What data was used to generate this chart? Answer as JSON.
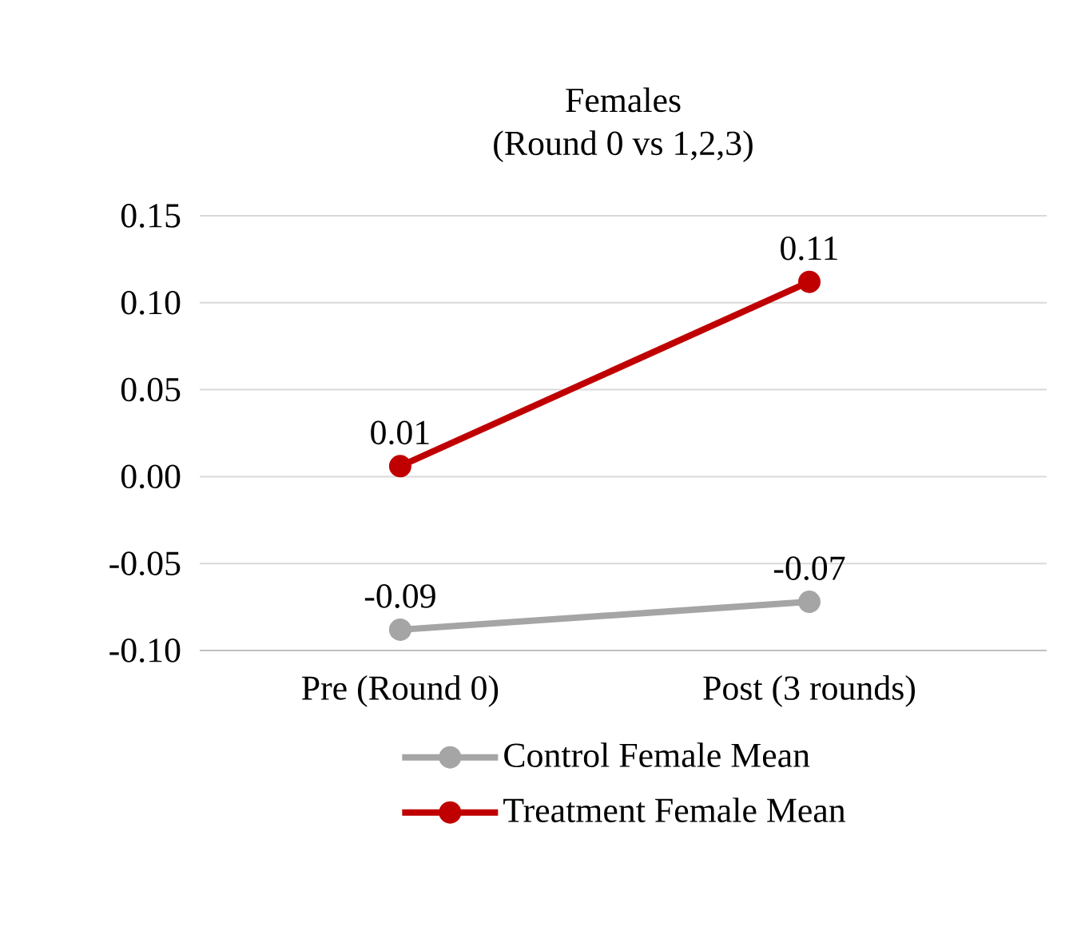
{
  "chart_data": {
    "type": "line",
    "title": "Females",
    "subtitle": "(Round 0 vs 1,2,3)",
    "categories": [
      "Pre (Round 0)",
      "Post (3 rounds)"
    ],
    "series": [
      {
        "name": "Control Female Mean",
        "color": "#a5a5a5",
        "values": [
          -0.088,
          -0.072
        ],
        "value_labels": [
          "-0.09",
          "-0.07"
        ]
      },
      {
        "name": "Treatment Female Mean",
        "color": "#c00000",
        "values": [
          0.006,
          0.112
        ],
        "value_labels": [
          "0.01",
          "0.11"
        ]
      }
    ],
    "ylim": [
      -0.1,
      0.15
    ],
    "yticks": [
      {
        "value": -0.1,
        "label": "-0.10"
      },
      -0.05,
      {
        "value": 0,
        "label": "0.00"
      },
      0.05,
      {
        "value": 0.1,
        "label": "0.10"
      },
      0.15
    ],
    "grid": "y",
    "legend": "bottom",
    "marker": "circle",
    "line_style": "solid"
  }
}
